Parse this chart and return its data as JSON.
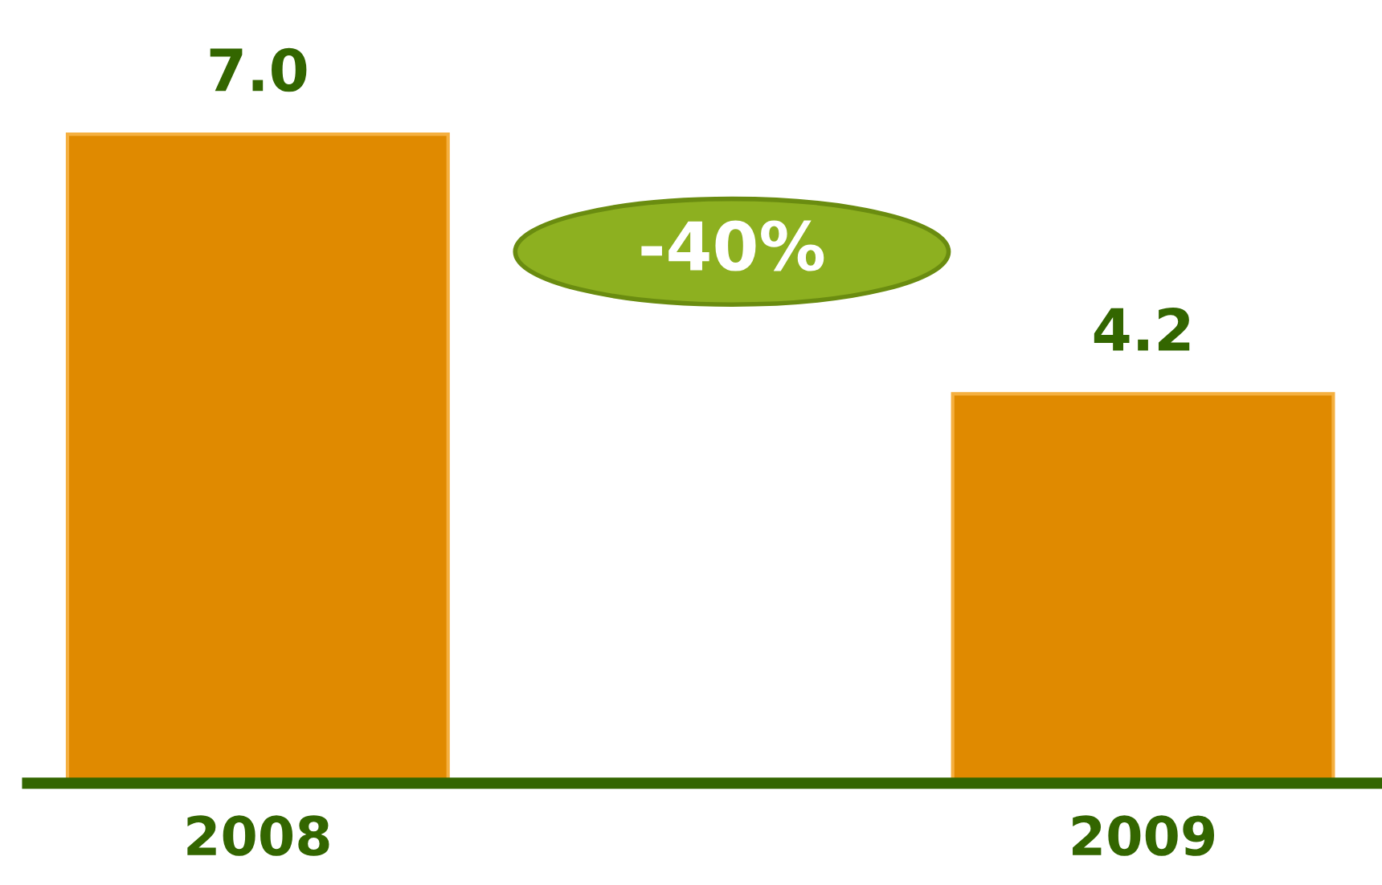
{
  "chart_data": {
    "type": "bar",
    "categories": [
      "2008",
      "2009"
    ],
    "values": [
      7.0,
      4.2
    ],
    "color": "#e08a00",
    "value_labels": [
      "7.0",
      "4.2"
    ],
    "annotations": [
      "-40%"
    ]
  }
}
